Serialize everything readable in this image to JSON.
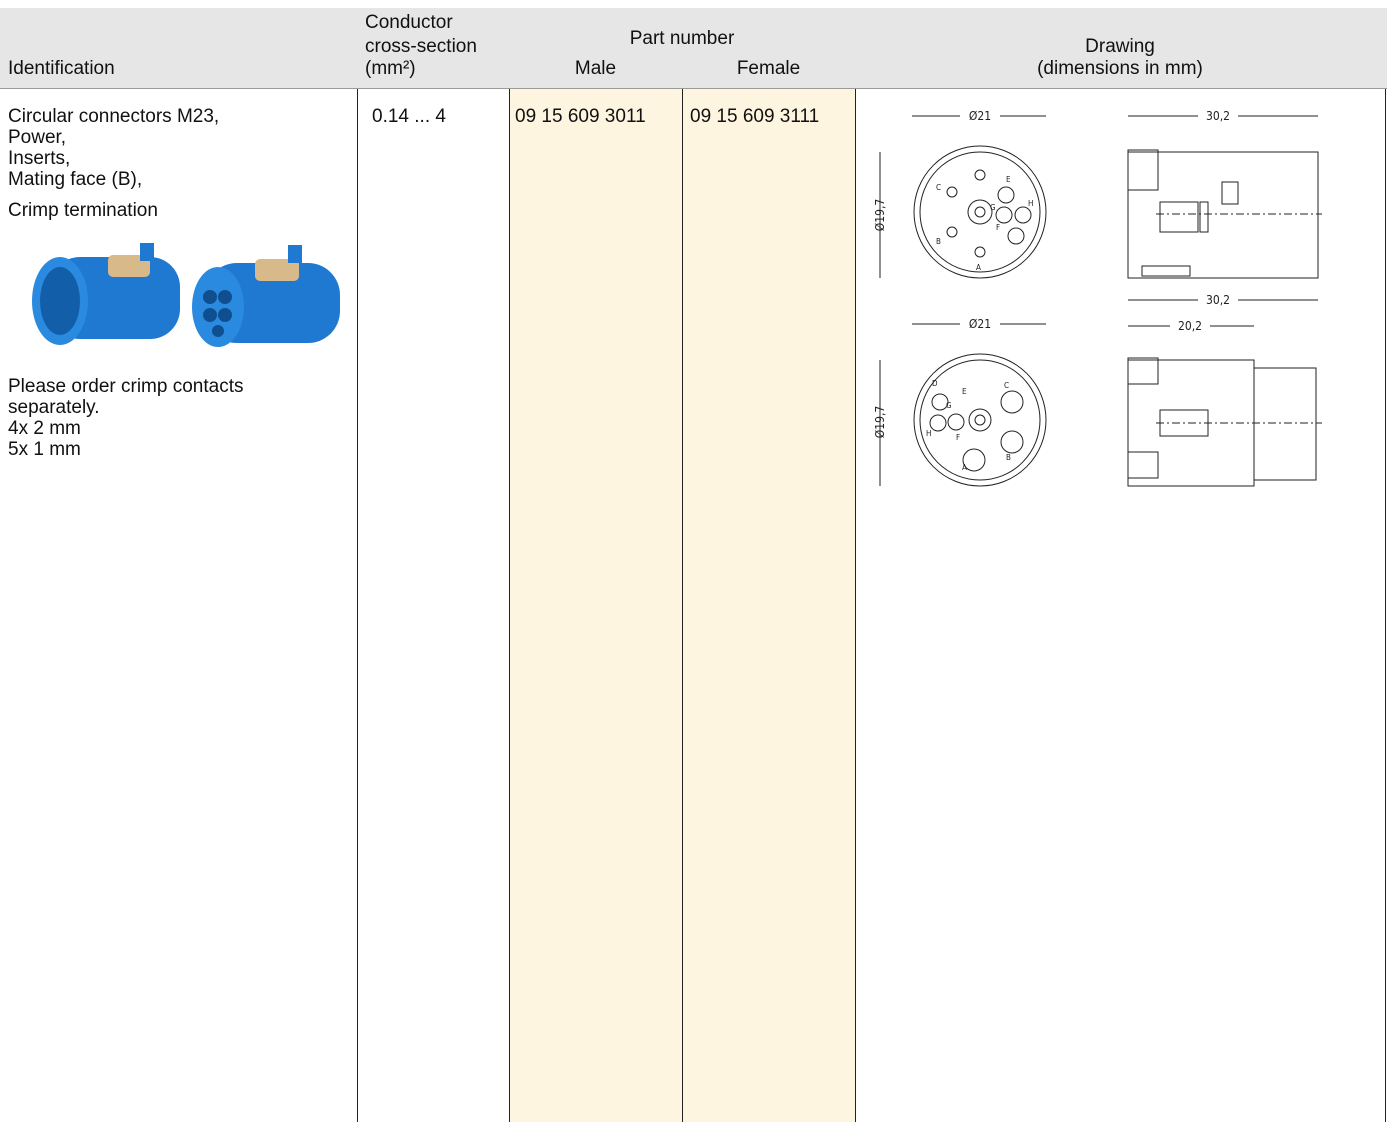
{
  "header": {
    "identification": "Identification",
    "conductor": [
      "Conductor",
      "cross-section",
      "(mm²)"
    ],
    "part_number": "Part number",
    "male": "Male",
    "female": "Female",
    "drawing": "Drawing",
    "drawing_units": "(dimensions in mm)"
  },
  "row": {
    "identification": [
      "Circular connectors M23,",
      "Power,",
      "Inserts,",
      "Mating face (B),",
      "Crimp termination"
    ],
    "notes": [
      "Please order crimp contacts",
      "separately.",
      "4x 2 mm",
      "5x 1 mm"
    ],
    "conductor": "0.14 ... 4",
    "male": "09 15 609 3011",
    "female": "09 15 609 3111"
  },
  "drawings": [
    {
      "front": {
        "outer": "Ø21",
        "inner": "Ø19,7",
        "pins": [
          "C",
          "E",
          "H",
          "G",
          "F",
          "B",
          "A"
        ]
      },
      "side": {
        "length": "30,2"
      }
    },
    {
      "front": {
        "outer": "Ø21",
        "inner": "Ø19,7",
        "pins": [
          "D",
          "E",
          "C",
          "H",
          "G",
          "F",
          "A",
          "B"
        ]
      },
      "side": {
        "length": "30,2",
        "body": "20,2"
      }
    }
  ]
}
